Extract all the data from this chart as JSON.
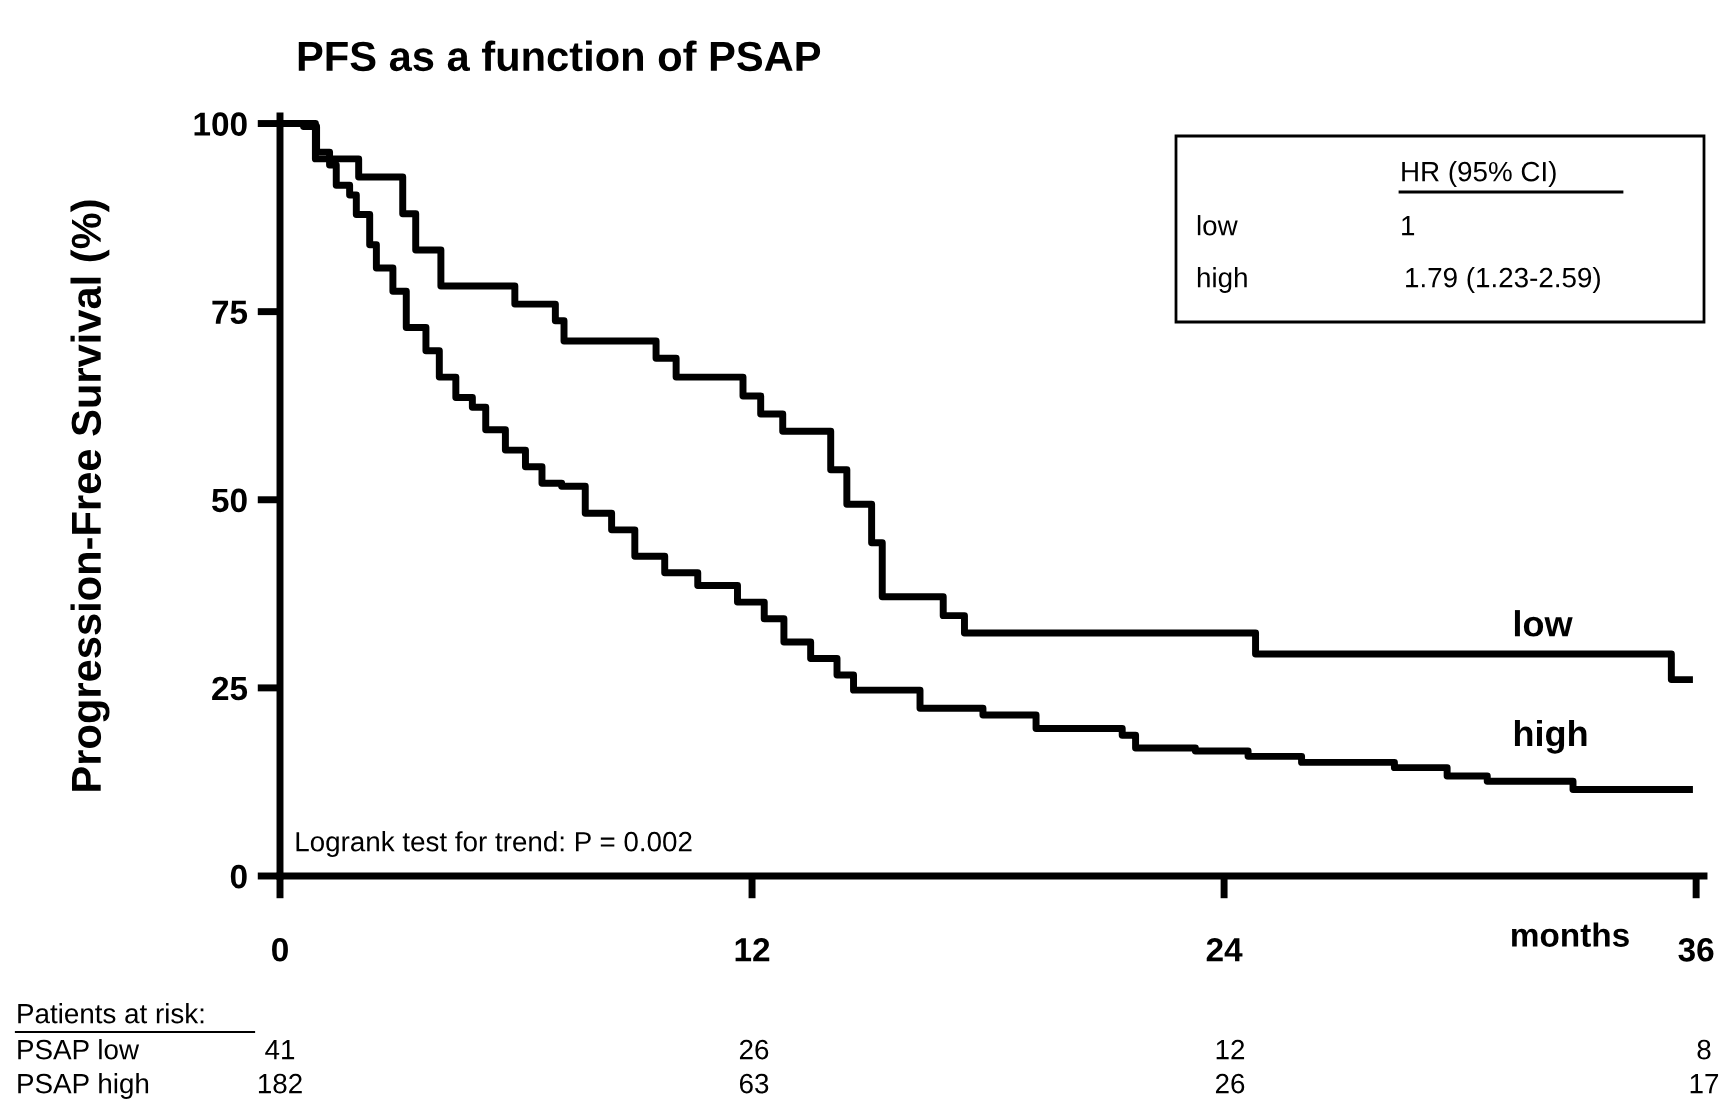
{
  "chart_data": {
    "type": "step",
    "title": "PFS as a function of PSAP",
    "xlabel": "months",
    "ylabel": "Progression-Free Survival (%)",
    "xlim": [
      0,
      36.2
    ],
    "ylim": [
      0,
      101
    ],
    "xticks": [
      0,
      12,
      24,
      36
    ],
    "yticks": [
      0,
      25,
      50,
      75,
      100
    ],
    "grid": false,
    "legend": false,
    "line_style": "solid",
    "marker": "none",
    "series": [
      {
        "name": "low",
        "color": "#000000",
        "x": [
          0,
          0.9,
          2.0,
          3.12,
          3.45,
          4.09,
          5.97,
          7.0,
          7.22,
          9.56,
          10.07,
          11.77,
          12.22,
          12.78,
          14.0,
          14.41,
          15.04,
          15.31,
          16.86,
          17.4,
          24.8,
          35.37,
          35.83
        ],
        "values": [
          100,
          95.3,
          92.9,
          88.0,
          83.2,
          78.4,
          76.0,
          73.8,
          71.1,
          68.8,
          66.3,
          63.8,
          61.4,
          59.1,
          54.0,
          49.4,
          44.3,
          37.1,
          34.6,
          32.3,
          29.5,
          26.1,
          26.1
        ]
      },
      {
        "name": "high",
        "color": "#000000",
        "x": [
          0,
          0.6,
          0.93,
          1.26,
          1.43,
          1.77,
          1.94,
          2.28,
          2.45,
          2.87,
          3.21,
          3.71,
          4.05,
          4.47,
          4.89,
          5.23,
          5.73,
          6.24,
          6.66,
          7.16,
          7.76,
          8.43,
          9.02,
          9.78,
          10.62,
          11.63,
          12.31,
          12.81,
          13.49,
          14.16,
          14.58,
          16.27,
          17.87,
          19.22,
          21.41,
          21.75,
          23.27,
          24.61,
          25.97,
          28.33,
          29.67,
          30.69,
          32.87,
          35.83
        ],
        "values": [
          100,
          99.6,
          96.2,
          94.5,
          91.8,
          90.5,
          87.9,
          83.9,
          80.8,
          77.7,
          72.9,
          69.8,
          66.3,
          63.6,
          62.3,
          59.3,
          56.6,
          54.4,
          52.2,
          51.8,
          48.2,
          46.0,
          42.5,
          40.3,
          38.6,
          36.4,
          34.2,
          31.1,
          28.9,
          26.7,
          24.7,
          22.3,
          21.4,
          19.6,
          18.7,
          17.0,
          16.6,
          15.9,
          15.1,
          14.4,
          13.3,
          12.6,
          11.5,
          11.5
        ]
      }
    ],
    "annotations": [
      "Logrank test for trend: P = 0.002",
      "HR (95% CI)",
      "low",
      "1",
      "high",
      "1.79 (1.23-2.59)",
      "Patients at risk:",
      "PSAP low",
      "41",
      "26",
      "12",
      "8",
      "PSAP high",
      "182",
      "63",
      "26",
      "17"
    ]
  }
}
